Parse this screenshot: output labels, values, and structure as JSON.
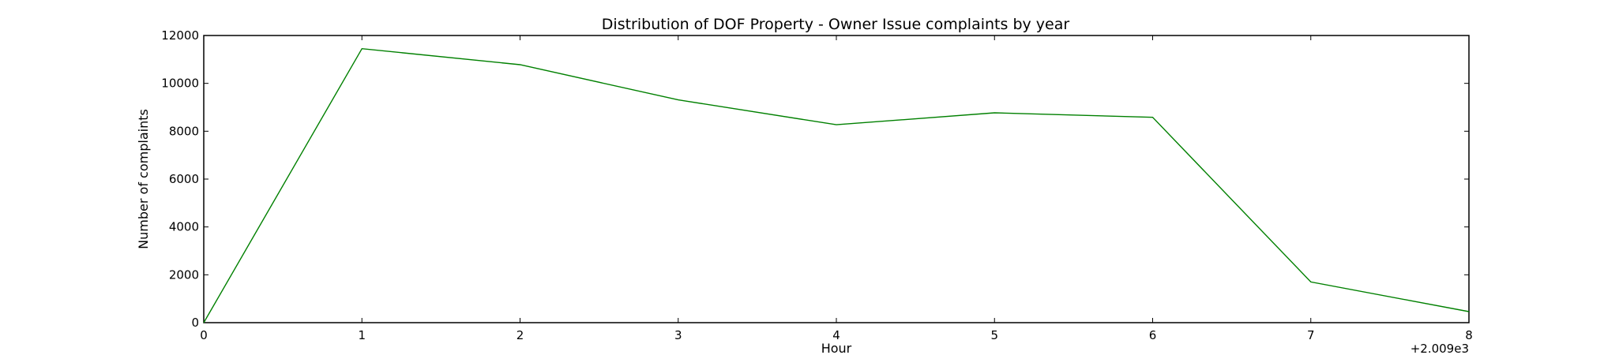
{
  "chart_data": {
    "type": "line",
    "title": "Distribution of  DOF Property - Owner Issue complaints by year",
    "xlabel": "Hour",
    "ylabel": "Number of complaints",
    "x_offset_label": "+2.009e3",
    "x": [
      0,
      1,
      2,
      3,
      4,
      5,
      6,
      7,
      8
    ],
    "xlim": [
      0,
      8
    ],
    "ylim": [
      0,
      12000
    ],
    "x_ticks": [
      0,
      1,
      2,
      3,
      4,
      5,
      6,
      7,
      8
    ],
    "y_ticks": [
      0,
      2000,
      4000,
      6000,
      8000,
      10000,
      12000
    ],
    "grid": false,
    "series": [
      {
        "color": "#008000",
        "values": [
          0,
          11450,
          10780,
          9310,
          8270,
          8770,
          8580,
          1700,
          460
        ]
      }
    ]
  }
}
